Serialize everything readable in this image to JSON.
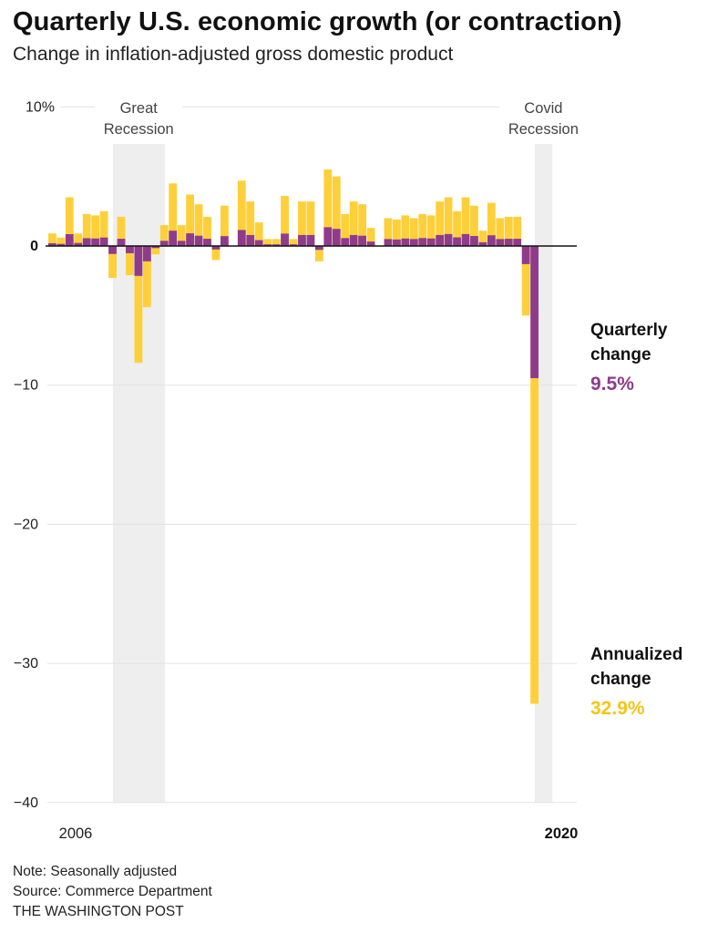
{
  "header": {
    "title": "Quarterly U.S. economic growth (or contraction)",
    "subtitle": "Change in inflation-adjusted gross domestic product"
  },
  "footer": {
    "note": "Note: Seasonally adjusted",
    "source": "Source: Commerce Department",
    "credit": "THE WASHINGTON POST"
  },
  "colors": {
    "annualized": "#fdd03b",
    "quarterly": "#8f3b8c",
    "recession_shade": "#eeeeee",
    "grid": "#e3e3e3",
    "baseline": "#111111"
  },
  "chart_data": {
    "type": "bar",
    "y_ticks": [
      {
        "value": 10,
        "label": "10%"
      },
      {
        "value": 0,
        "label": "0"
      },
      {
        "value": -10,
        "label": "−10"
      },
      {
        "value": -20,
        "label": "−20"
      },
      {
        "value": -30,
        "label": "−30"
      },
      {
        "value": -40,
        "label": "−40"
      }
    ],
    "ylim": [
      -40,
      10
    ],
    "x_ticks": [
      {
        "label": "2006",
        "quarter_index": 0
      },
      {
        "label": "2020",
        "quarter_index": 57
      }
    ],
    "recessions": [
      {
        "label_lines": [
          "Great",
          "Recession"
        ],
        "start_index": 7.5,
        "end_index": 13.5
      },
      {
        "label_lines": [
          "Covid",
          "Recession"
        ],
        "start_index": 56.5,
        "end_index": 58.5
      }
    ],
    "series": [
      {
        "name": "Annualized change",
        "values": [
          0.9,
          0.6,
          3.5,
          0.9,
          2.3,
          2.2,
          2.5,
          -2.3,
          2.1,
          -2.1,
          -8.4,
          -4.4,
          -0.6,
          1.5,
          4.5,
          1.5,
          3.7,
          3.0,
          2.1,
          -1.0,
          2.9,
          0.0,
          4.7,
          3.2,
          1.7,
          0.5,
          0.5,
          3.6,
          0.5,
          3.2,
          3.2,
          -1.1,
          5.5,
          5.0,
          2.3,
          3.2,
          3.0,
          1.3,
          0.0,
          2.0,
          1.9,
          2.2,
          2.0,
          2.3,
          2.2,
          3.2,
          3.5,
          2.5,
          3.5,
          2.9,
          1.1,
          3.1,
          2.0,
          2.1,
          2.1,
          -5.0,
          -32.9,
          0.0
        ],
        "display_value": "32.9%"
      },
      {
        "name": "Quarterly change",
        "values": [
          0.2,
          0.15,
          0.85,
          0.22,
          0.56,
          0.54,
          0.61,
          -0.57,
          0.52,
          -0.52,
          -2.15,
          -1.1,
          -0.15,
          0.37,
          1.1,
          0.37,
          0.91,
          0.74,
          0.52,
          -0.25,
          0.71,
          0.0,
          1.15,
          0.79,
          0.42,
          0.12,
          0.12,
          0.89,
          0.12,
          0.79,
          0.79,
          -0.28,
          1.35,
          1.23,
          0.57,
          0.79,
          0.74,
          0.32,
          0.0,
          0.5,
          0.47,
          0.54,
          0.5,
          0.57,
          0.54,
          0.79,
          0.86,
          0.62,
          0.86,
          0.72,
          0.27,
          0.77,
          0.5,
          0.52,
          0.52,
          -1.3,
          -9.5,
          0.0
        ],
        "display_value": "9.5%"
      }
    ],
    "annotations": [
      {
        "series": "quarterly",
        "lines": [
          "Quarterly",
          "change"
        ],
        "value": "9.5%"
      },
      {
        "series": "annualized",
        "lines": [
          "Annualized",
          "change"
        ],
        "value": "32.9%"
      }
    ],
    "grid": true
  }
}
